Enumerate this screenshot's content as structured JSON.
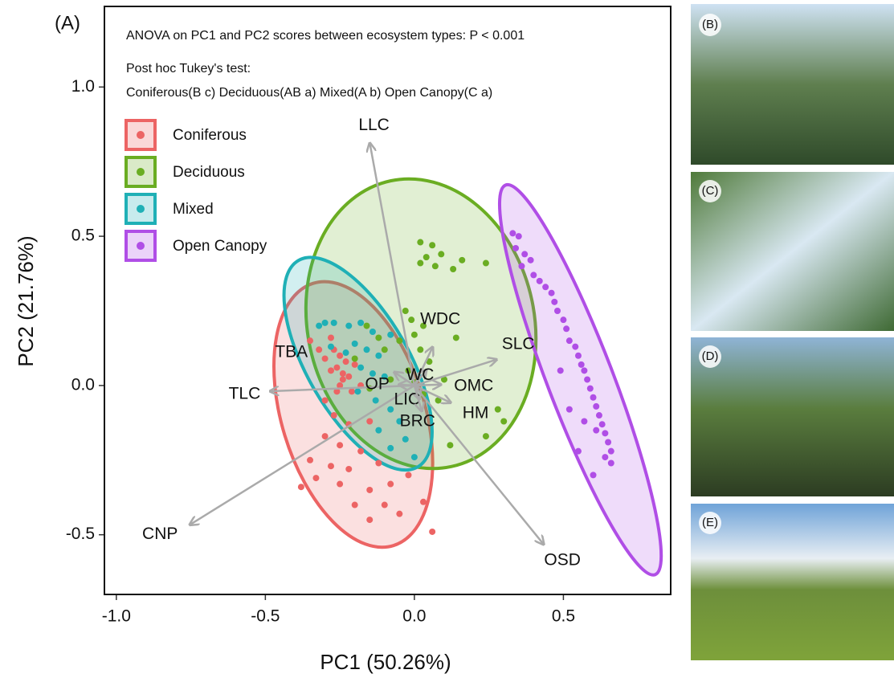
{
  "panels": [
    "(B)",
    "(C)",
    "(D)",
    "(E)"
  ],
  "chart_data": {
    "type": "scatter",
    "panel": "(A)",
    "annotations": [
      "ANOVA on PC1 and PC2 scores between ecosystem types: P < 0.001",
      "Post hoc Tukey's test:",
      "Coniferous(B c)  Deciduous(AB a)  Mixed(A b)  Open Canopy(C a)"
    ],
    "x_label": "PC1 (50.26%)",
    "y_label": "PC2 (21.76%)",
    "xlim": [
      -1.04,
      0.86
    ],
    "ylim": [
      -0.7,
      1.27
    ],
    "xticks": [
      {
        "value": -1.0,
        "label": "-1.0"
      },
      {
        "value": -0.5,
        "label": "-0.5"
      },
      {
        "value": 0.0,
        "label": "0.0"
      },
      {
        "value": 0.5,
        "label": "0.5"
      }
    ],
    "yticks": [
      {
        "value": -0.5,
        "label": "-0.5"
      },
      {
        "value": 0.0,
        "label": "0.0"
      },
      {
        "value": 0.5,
        "label": "0.5"
      },
      {
        "value": 1.0,
        "label": "1.0"
      }
    ],
    "series": [
      {
        "name": "Coniferous",
        "color": "#ec6464",
        "x": [
          -0.27,
          -0.25,
          -0.23,
          -0.26,
          -0.24,
          -0.22,
          -0.28,
          -0.3,
          -0.2,
          -0.25,
          -0.21,
          -0.18,
          -0.3,
          -0.27,
          -0.22,
          -0.15,
          -0.3,
          -0.25,
          -0.18,
          -0.35,
          -0.28,
          -0.22,
          -0.12,
          -0.33,
          -0.25,
          -0.15,
          -0.08,
          -0.38,
          -0.2,
          -0.1,
          -0.05,
          -0.15,
          0.06,
          0.03,
          -0.02,
          -0.35,
          -0.32,
          -0.28,
          -0.24,
          -0.26
        ],
        "y": [
          0.12,
          0.1,
          0.08,
          0.06,
          0.04,
          0.03,
          0.05,
          0.09,
          0.07,
          0.0,
          -0.02,
          0.0,
          -0.05,
          -0.1,
          -0.13,
          -0.12,
          -0.17,
          -0.2,
          -0.22,
          -0.25,
          -0.27,
          -0.28,
          -0.26,
          -0.31,
          -0.33,
          -0.35,
          -0.33,
          -0.34,
          -0.4,
          -0.4,
          -0.43,
          -0.45,
          -0.49,
          -0.39,
          -0.3,
          0.15,
          0.12,
          0.16,
          0.02,
          -0.02
        ],
        "ellipse": {
          "cx": -0.205,
          "cy": -0.097,
          "rx": 0.46,
          "ry": 0.24,
          "angle": -73
        }
      },
      {
        "name": "Deciduous",
        "color": "#6aad22",
        "x": [
          0.02,
          0.06,
          0.09,
          0.04,
          0.02,
          0.07,
          0.16,
          0.24,
          0.13,
          -0.03,
          -0.01,
          0.03,
          0.0,
          0.14,
          -0.05,
          0.02,
          -0.1,
          -0.12,
          0.05,
          -0.02,
          -0.08,
          0.0,
          0.03,
          -0.15,
          0.28,
          0.3,
          0.24,
          0.12,
          -0.2,
          -0.16,
          0.08,
          0.1
        ],
        "y": [
          0.48,
          0.47,
          0.44,
          0.43,
          0.41,
          0.4,
          0.42,
          0.41,
          0.39,
          0.25,
          0.22,
          0.2,
          0.17,
          0.16,
          0.15,
          0.12,
          0.12,
          0.16,
          0.08,
          0.05,
          0.02,
          0.01,
          -0.03,
          -0.01,
          -0.08,
          -0.12,
          -0.17,
          -0.2,
          0.09,
          0.2,
          -0.05,
          0.02
        ],
        "ellipse": {
          "cx": 0.022,
          "cy": 0.207,
          "rx": 0.49,
          "ry": 0.38,
          "angle": -78
        }
      },
      {
        "name": "Mixed",
        "color": "#1fb0b6",
        "x": [
          -0.32,
          -0.3,
          -0.27,
          -0.22,
          -0.18,
          -0.14,
          -0.08,
          -0.2,
          -0.16,
          -0.12,
          -0.18,
          -0.14,
          -0.1,
          -0.19,
          -0.13,
          -0.08,
          -0.05,
          -0.12,
          -0.03,
          -0.08,
          0.0,
          -0.28,
          -0.23
        ],
        "y": [
          0.2,
          0.21,
          0.21,
          0.2,
          0.21,
          0.18,
          0.17,
          0.14,
          0.12,
          0.1,
          0.06,
          0.04,
          0.03,
          -0.02,
          -0.05,
          -0.08,
          -0.12,
          -0.15,
          -0.18,
          -0.21,
          -0.24,
          0.13,
          0.11
        ],
        "ellipse": {
          "cx": -0.189,
          "cy": 0.073,
          "rx": 0.4,
          "ry": 0.17,
          "angle": -60
        }
      },
      {
        "name": "Open Canopy",
        "color": "#b04ee6",
        "x": [
          0.33,
          0.35,
          0.34,
          0.37,
          0.39,
          0.36,
          0.4,
          0.42,
          0.44,
          0.46,
          0.47,
          0.48,
          0.5,
          0.51,
          0.52,
          0.54,
          0.55,
          0.56,
          0.57,
          0.58,
          0.59,
          0.6,
          0.61,
          0.62,
          0.63,
          0.64,
          0.65,
          0.66,
          0.66,
          0.64,
          0.61,
          0.52,
          0.55,
          0.6,
          0.57,
          0.49
        ],
        "y": [
          0.51,
          0.5,
          0.46,
          0.44,
          0.42,
          0.4,
          0.37,
          0.35,
          0.33,
          0.31,
          0.28,
          0.25,
          0.22,
          0.19,
          0.15,
          0.13,
          0.1,
          0.07,
          0.05,
          0.02,
          -0.01,
          -0.04,
          -0.07,
          -0.1,
          -0.13,
          -0.16,
          -0.19,
          -0.22,
          -0.26,
          -0.24,
          -0.15,
          -0.08,
          -0.22,
          -0.3,
          -0.12,
          0.05
        ],
        "ellipse": {
          "cx": 0.557,
          "cy": 0.019,
          "rx": 0.7,
          "ry": 0.11,
          "angle": -69
        }
      }
    ],
    "loadings": [
      {
        "label": "LLC",
        "x": -0.149,
        "y": 0.809
      },
      {
        "label": "TLC",
        "x": -0.481,
        "y": -0.019
      },
      {
        "label": "CNP",
        "x": -0.751,
        "y": -0.465
      },
      {
        "label": "OSD",
        "x": 0.432,
        "y": -0.53
      },
      {
        "label": "SLC",
        "x": 0.273,
        "y": 0.086
      },
      {
        "label": "WDC",
        "x": 0.06,
        "y": 0.126
      },
      {
        "label": "WC",
        "x": 0.038,
        "y": 0.05
      },
      {
        "label": "OMC",
        "x": 0.086,
        "y": 0.003
      },
      {
        "label": "OP",
        "x": -0.049,
        "y": 0.003
      },
      {
        "label": "TBA",
        "x": -0.065,
        "y": 0.043
      },
      {
        "label": "HM",
        "x": 0.119,
        "y": -0.056
      },
      {
        "label": "LIC",
        "x": 0.016,
        "y": -0.043
      },
      {
        "label": "BRC",
        "x": 0.024,
        "y": -0.083
      }
    ]
  }
}
